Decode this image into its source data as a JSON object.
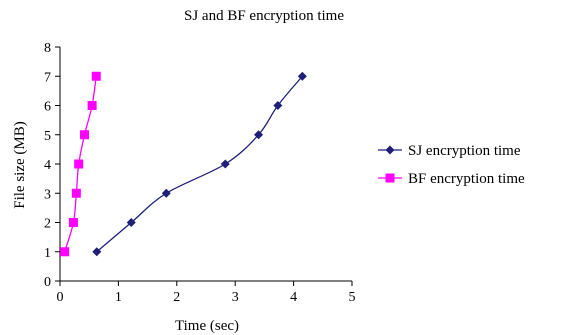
{
  "chart_data": {
    "type": "line",
    "title": "SJ and BF encryption time",
    "xlabel": "Time (sec)",
    "ylabel": "File size (MB)",
    "xlim": [
      0,
      5
    ],
    "ylim": [
      0,
      8
    ],
    "xticks": [
      "0",
      "1",
      "2",
      "3",
      "4",
      "5"
    ],
    "yticks": [
      "0",
      "1",
      "2",
      "3",
      "4",
      "5",
      "6",
      "7",
      "8"
    ],
    "grid": false,
    "legend_position": "right",
    "series": [
      {
        "name": "SJ encryption time",
        "color": "#1f1f7a",
        "marker": "diamond",
        "points": [
          [
            0.63,
            1
          ],
          [
            1.22,
            2
          ],
          [
            1.82,
            3
          ],
          [
            2.83,
            4
          ],
          [
            3.4,
            5
          ],
          [
            3.73,
            6
          ],
          [
            4.15,
            7
          ]
        ]
      },
      {
        "name": "BF encryption time",
        "color": "#ff00ff",
        "marker": "square",
        "points": [
          [
            0.08,
            1
          ],
          [
            0.23,
            2
          ],
          [
            0.28,
            3
          ],
          [
            0.32,
            4
          ],
          [
            0.42,
            5
          ],
          [
            0.55,
            6
          ],
          [
            0.62,
            7
          ]
        ]
      }
    ]
  }
}
